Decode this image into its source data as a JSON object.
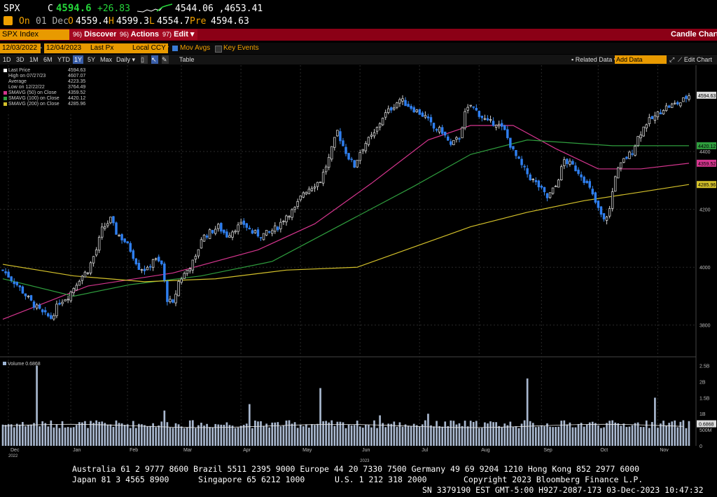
{
  "quote": {
    "ticker": "SPX",
    "last": "4594.6",
    "last_prefix": "C",
    "change": "+26.83",
    "range": "4544.06 ,4653.41",
    "on_label": "On",
    "date": "01 Dec",
    "open_label": "O",
    "open": "4559.4",
    "high_label": "H",
    "high": "4599.3",
    "low_label": "L",
    "low": "4554.7",
    "pre_label": "Pre",
    "pre": "4594.63"
  },
  "menubar": {
    "security": "SPX Index",
    "discover": "Discover",
    "actions": "Actions",
    "edit": "Edit",
    "discover_num": "96)",
    "actions_num": "96)",
    "edit_num": "97)",
    "title": "Candle Chart"
  },
  "options": {
    "start_date": "12/03/2022",
    "end_date": "12/04/2023",
    "field": "Last Px",
    "currency": "Local CCY",
    "mov_avgs": "Mov Avgs",
    "key_events": "Key Events"
  },
  "tabs": {
    "periods": [
      "1D",
      "3D",
      "1M",
      "6M",
      "YTD",
      "1Y",
      "5Y",
      "Max"
    ],
    "selected": "1Y",
    "freq": "Daily",
    "table": "Table",
    "related": "Related Data",
    "add_data": "Add Data",
    "edit_chart": "Edit Chart"
  },
  "legend": [
    {
      "label": "Last Price",
      "value": "4594.63",
      "color": "#ffffff"
    },
    {
      "label": "High on 07/27/23",
      "value": "4607.07",
      "color": "#ffffff"
    },
    {
      "label": "Average",
      "value": "4223.35",
      "color": "#ffffff"
    },
    {
      "label": "Low on 12/22/22",
      "value": "3764.49",
      "color": "#ffffff"
    },
    {
      "label": "SMAVG (50)  on Close",
      "value": "4359.52",
      "color": "#d5358e"
    },
    {
      "label": "SMAVG (100)  on Close",
      "value": "4420.12",
      "color": "#2f9e3e"
    },
    {
      "label": "SMAVG (200)  on Close",
      "value": "4285.96",
      "color": "#d4c12a"
    }
  ],
  "volume_label": "Volume  0.6868",
  "chart_data": {
    "type": "candlestick",
    "x_range": [
      "2022-12-03",
      "2023-12-04"
    ],
    "ylim": [
      3700,
      4650
    ],
    "y_ticks": [
      3800,
      4000,
      4200,
      4400
    ],
    "x_month_labels": [
      "Dec",
      "Jan",
      "Feb",
      "Mar",
      "Apr",
      "May",
      "Jun",
      "Jul",
      "Aug",
      "Sep",
      "Oct",
      "Nov"
    ],
    "x_year_labels": [
      "2022",
      "2023"
    ],
    "close_path": [
      [
        0,
        3990
      ],
      [
        5,
        3940
      ],
      [
        10,
        3880
      ],
      [
        14,
        3840
      ],
      [
        17,
        3825
      ],
      [
        20,
        3880
      ],
      [
        23,
        3900
      ],
      [
        27,
        3960
      ],
      [
        30,
        3990
      ],
      [
        33,
        4060
      ],
      [
        35,
        4130
      ],
      [
        38,
        4165
      ],
      [
        40,
        4120
      ],
      [
        43,
        4090
      ],
      [
        45,
        4060
      ],
      [
        48,
        4000
      ],
      [
        51,
        3990
      ],
      [
        53,
        4030
      ],
      [
        56,
        4010
      ],
      [
        58,
        3890
      ],
      [
        60,
        3870
      ],
      [
        62,
        3950
      ],
      [
        65,
        3990
      ],
      [
        68,
        4030
      ],
      [
        70,
        4100
      ],
      [
        73,
        4120
      ],
      [
        76,
        4140
      ],
      [
        79,
        4110
      ],
      [
        82,
        4135
      ],
      [
        85,
        4150
      ],
      [
        88,
        4120
      ],
      [
        91,
        4110
      ],
      [
        94,
        4120
      ],
      [
        97,
        4140
      ],
      [
        100,
        4180
      ],
      [
        103,
        4200
      ],
      [
        106,
        4260
      ],
      [
        109,
        4280
      ],
      [
        112,
        4300
      ],
      [
        115,
        4375
      ],
      [
        118,
        4470
      ],
      [
        120,
        4420
      ],
      [
        122,
        4380
      ],
      [
        124,
        4350
      ],
      [
        126,
        4400
      ],
      [
        128,
        4430
      ],
      [
        131,
        4460
      ],
      [
        134,
        4520
      ],
      [
        137,
        4550
      ],
      [
        140,
        4580
      ],
      [
        143,
        4560
      ],
      [
        146,
        4540
      ],
      [
        149,
        4520
      ],
      [
        152,
        4480
      ],
      [
        155,
        4470
      ],
      [
        158,
        4420
      ],
      [
        161,
        4450
      ],
      [
        163,
        4530
      ],
      [
        165,
        4560
      ],
      [
        168,
        4530
      ],
      [
        171,
        4500
      ],
      [
        174,
        4500
      ],
      [
        177,
        4470
      ],
      [
        180,
        4400
      ],
      [
        183,
        4350
      ],
      [
        186,
        4310
      ],
      [
        189,
        4280
      ],
      [
        192,
        4240
      ],
      [
        195,
        4280
      ],
      [
        198,
        4370
      ],
      [
        201,
        4350
      ],
      [
        204,
        4320
      ],
      [
        207,
        4270
      ],
      [
        210,
        4200
      ],
      [
        212,
        4160
      ],
      [
        214,
        4200
      ],
      [
        216,
        4320
      ],
      [
        219,
        4370
      ],
      [
        222,
        4400
      ],
      [
        224,
        4450
      ],
      [
        227,
        4500
      ],
      [
        230,
        4520
      ],
      [
        233,
        4550
      ],
      [
        236,
        4560
      ],
      [
        239,
        4570
      ],
      [
        242,
        4594.63
      ]
    ],
    "volume_ylim": [
      0,
      2.6
    ],
    "volume_ticks": [
      "0",
      "500M",
      "1B",
      "1.5B",
      "2B",
      "2.5B"
    ],
    "volume_last": "0.6868",
    "series": [
      {
        "name": "SMAVG (50)  on Close",
        "color": "#d5358e",
        "values": [
          [
            0,
            3820
          ],
          [
            30,
            3935
          ],
          [
            60,
            3980
          ],
          [
            90,
            4060
          ],
          [
            110,
            4150
          ],
          [
            130,
            4290
          ],
          [
            150,
            4440
          ],
          [
            165,
            4490
          ],
          [
            180,
            4490
          ],
          [
            195,
            4410
          ],
          [
            210,
            4340
          ],
          [
            225,
            4340
          ],
          [
            242,
            4359.52
          ]
        ]
      },
      {
        "name": "SMAVG (100)  on Close",
        "color": "#2f9e3e",
        "values": [
          [
            0,
            3960
          ],
          [
            25,
            3900
          ],
          [
            45,
            3940
          ],
          [
            70,
            3970
          ],
          [
            95,
            4020
          ],
          [
            120,
            4150
          ],
          [
            145,
            4280
          ],
          [
            165,
            4390
          ],
          [
            185,
            4440
          ],
          [
            200,
            4430
          ],
          [
            215,
            4420
          ],
          [
            242,
            4420.12
          ]
        ]
      },
      {
        "name": "SMAVG (200)  on Close",
        "color": "#d4c12a",
        "values": [
          [
            0,
            4010
          ],
          [
            25,
            3970
          ],
          [
            50,
            3950
          ],
          [
            75,
            3960
          ],
          [
            100,
            3990
          ],
          [
            125,
            4000
          ],
          [
            145,
            4070
          ],
          [
            165,
            4140
          ],
          [
            185,
            4190
          ],
          [
            205,
            4230
          ],
          [
            225,
            4260
          ],
          [
            242,
            4285.96
          ]
        ]
      }
    ],
    "right_tags": [
      {
        "label": "4594.63",
        "color": "#dddddd"
      },
      {
        "label": "4420.12",
        "color": "#2f9e3e"
      },
      {
        "label": "4359.52",
        "color": "#d5358e"
      },
      {
        "label": "4285.96",
        "color": "#d4c12a"
      }
    ]
  },
  "footer": {
    "line1": "Australia 61 2 9777 8600 Brazil 5511 2395 9000 Europe 44 20 7330 7500 Germany 49 69 9204 1210 Hong Kong 852 2977 6000",
    "line2a": "Japan 81 3 4565 8900",
    "line2b": "Singapore 65 6212 1000",
    "line2c": "U.S. 1 212 318 2000",
    "line2d": "Copyright 2023 Bloomberg Finance L.P.",
    "line3": "SN 3379190 EST  GMT-5:00 H927-2087-173 03-Dec-2023 10:47:32"
  }
}
